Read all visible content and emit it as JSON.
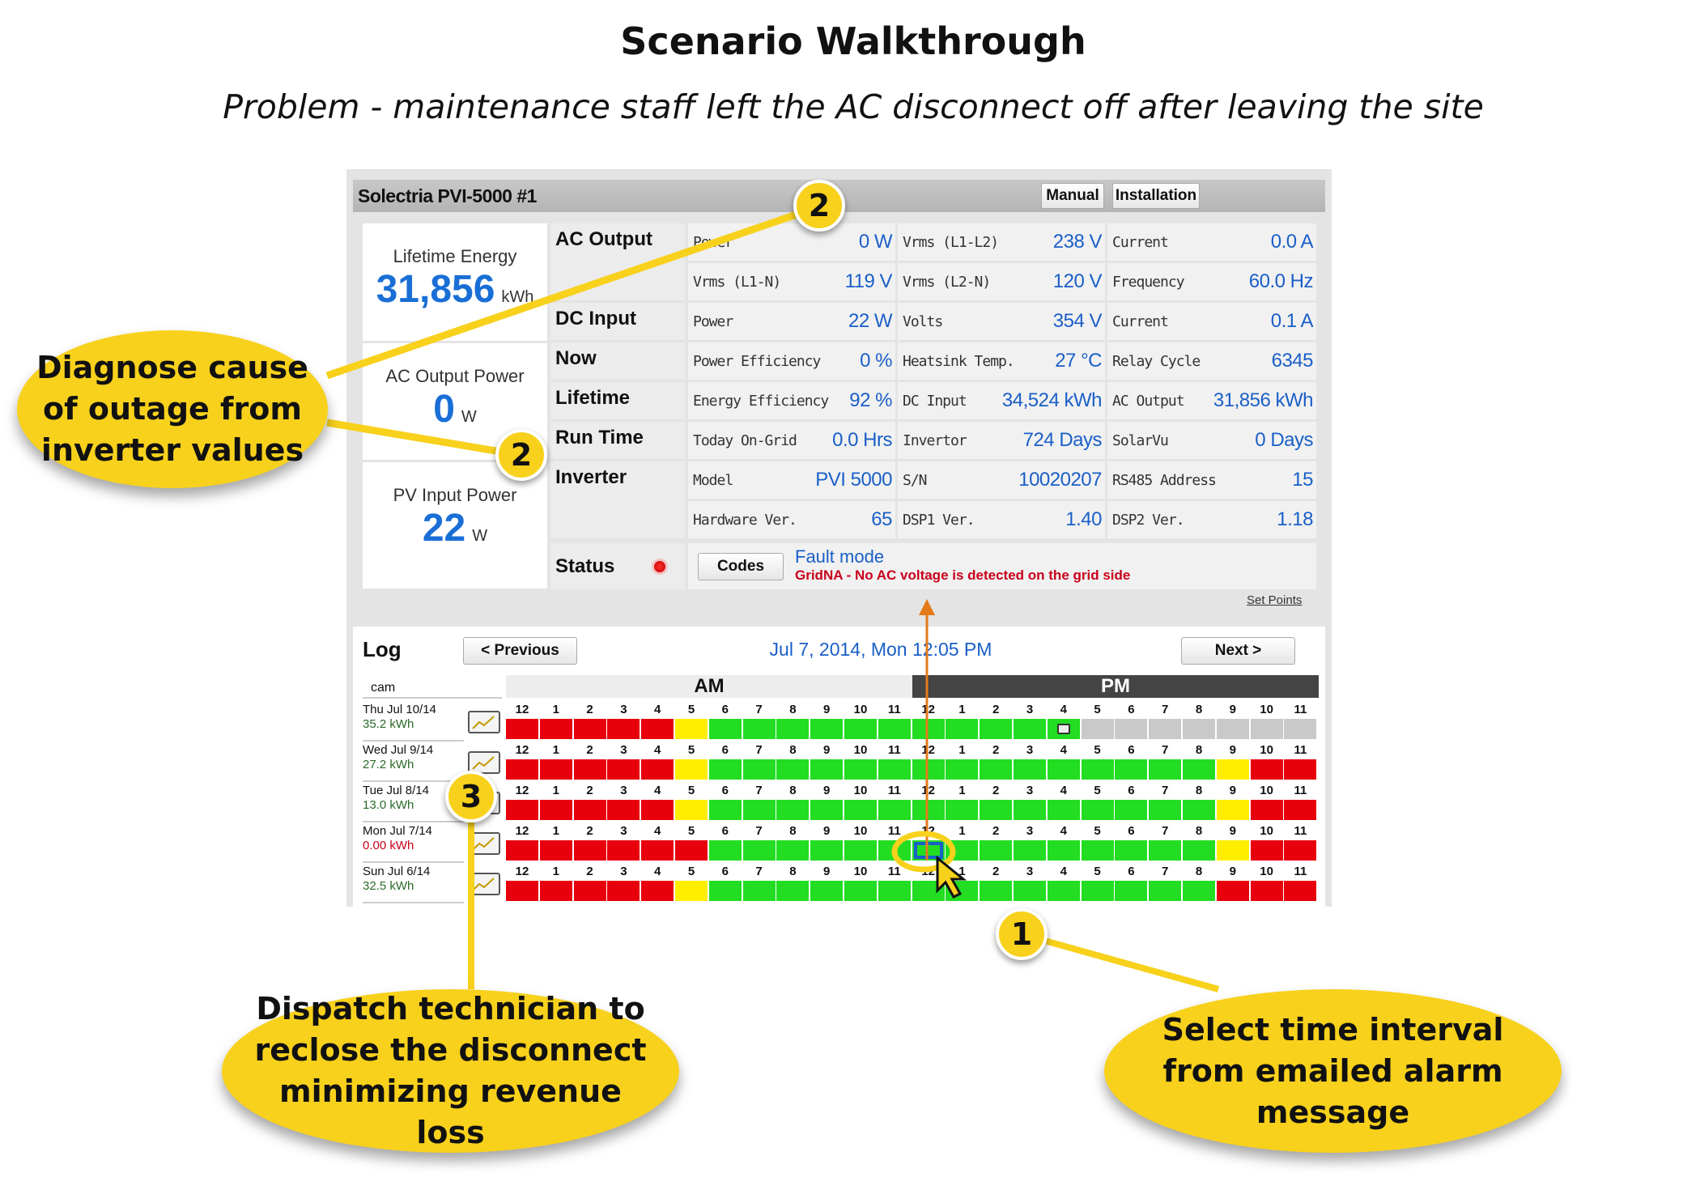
{
  "header": {
    "title": "Scenario Walkthrough",
    "subtitle": "Problem - maintenance staff left the AC disconnect off after leaving the site"
  },
  "inverter": {
    "name": "Solectria PVI-5000 #1",
    "manual_label": "Manual",
    "installation_label": "Installation",
    "lifetime_energy": {
      "label": "Lifetime Energy",
      "value": "31,856",
      "unit": "kWh"
    },
    "ac_output_power": {
      "label": "AC Output Power",
      "value": "0",
      "unit": "W"
    },
    "pv_input_power": {
      "label": "PV Input Power",
      "value": "22",
      "unit": "W"
    },
    "sections": [
      "AC Output",
      "DC Input",
      "Now",
      "Lifetime",
      "Run Time",
      "Inverter"
    ],
    "rows": [
      [
        {
          "k": "Power",
          "v": "0 W"
        },
        {
          "k": "Vrms (L1-L2)",
          "v": "238 V"
        },
        {
          "k": "Current",
          "v": "0.0 A"
        }
      ],
      [
        {
          "k": "Vrms (L1-N)",
          "v": "119 V"
        },
        {
          "k": "Vrms (L2-N)",
          "v": "120 V"
        },
        {
          "k": "Frequency",
          "v": "60.0 Hz"
        }
      ],
      [
        {
          "k": "Power",
          "v": "22 W"
        },
        {
          "k": "Volts",
          "v": "354 V"
        },
        {
          "k": "Current",
          "v": "0.1 A"
        }
      ],
      [
        {
          "k": "Power Efficiency",
          "v": "0 %"
        },
        {
          "k": "Heatsink Temp.",
          "v": "27 °C"
        },
        {
          "k": "Relay Cycle",
          "v": "6345"
        }
      ],
      [
        {
          "k": "Energy Efficiency",
          "v": "92 %"
        },
        {
          "k": "DC Input",
          "v": "34,524 kWh"
        },
        {
          "k": "AC Output",
          "v": "31,856 kWh"
        }
      ],
      [
        {
          "k": "Today On-Grid",
          "v": "0.0 Hrs"
        },
        {
          "k": "Invertor",
          "v": "724 Days"
        },
        {
          "k": "SolarVu",
          "v": "0 Days"
        }
      ],
      [
        {
          "k": "Model",
          "v": "PVI 5000"
        },
        {
          "k": "S/N",
          "v": "10020207"
        },
        {
          "k": "RS485 Address",
          "v": "15"
        }
      ],
      [
        {
          "k": "Hardware Ver.",
          "v": "65"
        },
        {
          "k": "DSP1 Ver.",
          "v": "1.40"
        },
        {
          "k": "DSP2 Ver.",
          "v": "1.18"
        }
      ]
    ],
    "status": {
      "label": "Status",
      "codes_label": "Codes",
      "mode": "Fault mode",
      "message": "GridNA - No AC voltage is detected on the grid side",
      "indicator_color": "#e00000"
    },
    "set_points_label": "Set Points"
  },
  "log": {
    "title": "Log",
    "previous_label": "< Previous",
    "next_label": "Next >",
    "timestamp": "Jul 7, 2014, Mon 12:05 PM",
    "cam_label": "cam",
    "am_label": "AM",
    "pm_label": "PM",
    "hours": [
      "12",
      "1",
      "2",
      "3",
      "4",
      "5",
      "6",
      "7",
      "8",
      "9",
      "10",
      "11",
      "12",
      "1",
      "2",
      "3",
      "4",
      "5",
      "6",
      "7",
      "8",
      "9",
      "10",
      "11"
    ],
    "colors": {
      "R": "#e8000c",
      "Y": "#ffee00",
      "G": "#22dd22",
      "N": "#c9c9c9",
      "S": "#22dd22",
      "C": "#22dd22"
    },
    "days": [
      {
        "date": "Thu Jul 10/14",
        "energy": "35.2 kWh",
        "cells": "RRRRRYGGGGGGGGGGCNNNNNNN"
      },
      {
        "date": "Wed Jul 9/14",
        "energy": "27.2 kWh",
        "cells": "RRRRRYGGGGGGGGGGGGGGGYRR"
      },
      {
        "date": "Tue Jul 8/14",
        "energy": "13.0 kWh",
        "cells": "RRRRRYGGGGGGGGGGGGGGGYRR"
      },
      {
        "date": "Mon Jul 7/14",
        "energy": "0.00 kWh",
        "cells": "RRRRRRGGGGGGSGGGGGGGGYRR",
        "alert": true
      },
      {
        "date": "Sun Jul 6/14",
        "energy": "32.5 kWh",
        "cells": "RRRRRYGGGGGGGGGGGGGGGRRR"
      }
    ]
  },
  "callouts": {
    "diagnose": "Diagnose cause of outage from inverter values",
    "dispatch": "Dispatch technician to reclose the disconnect minimizing revenue loss",
    "select": "Select time interval from emailed alarm message",
    "steps": [
      "1",
      "2",
      "2",
      "3"
    ]
  },
  "accent": "#f8d11c"
}
